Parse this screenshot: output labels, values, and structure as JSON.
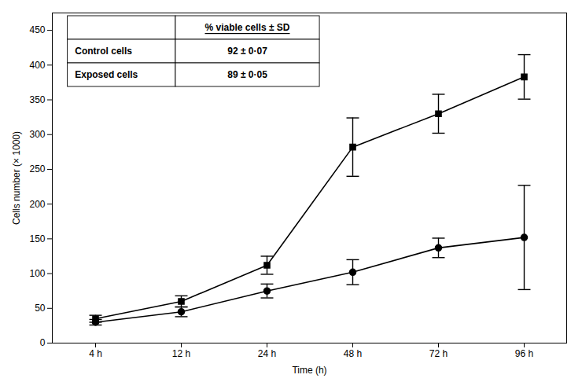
{
  "chart_data": {
    "type": "line",
    "xlabel": "Time (h)",
    "ylabel": "Cells number (× 1000)",
    "categories": [
      "4 h",
      "12 h",
      "24 h",
      "48 h",
      "72 h",
      "96 h"
    ],
    "series": [
      {
        "color": "#000000",
        "marker": "square",
        "line_style": "solid",
        "values": [
          35,
          60,
          112,
          282,
          330,
          383
        ],
        "errors": [
          5,
          8,
          13,
          42,
          28,
          32
        ]
      },
      {
        "color": "#000000",
        "marker": "circle",
        "line_style": "solid",
        "values": [
          30,
          45,
          75,
          102,
          137,
          152
        ],
        "errors": [
          4,
          7,
          10,
          18,
          14,
          75
        ]
      }
    ],
    "ylim": [
      0,
      475
    ],
    "yticks": [
      0,
      50,
      100,
      150,
      200,
      250,
      300,
      350,
      400,
      450
    ],
    "grid": false,
    "table": {
      "columns": [
        "% viable cells ± SD"
      ],
      "rows": [
        {
          "label": "Control cells",
          "values": [
            "92 ± 0·07"
          ]
        },
        {
          "label": "Exposed cells",
          "values": [
            "89 ± 0·05"
          ]
        }
      ]
    }
  }
}
